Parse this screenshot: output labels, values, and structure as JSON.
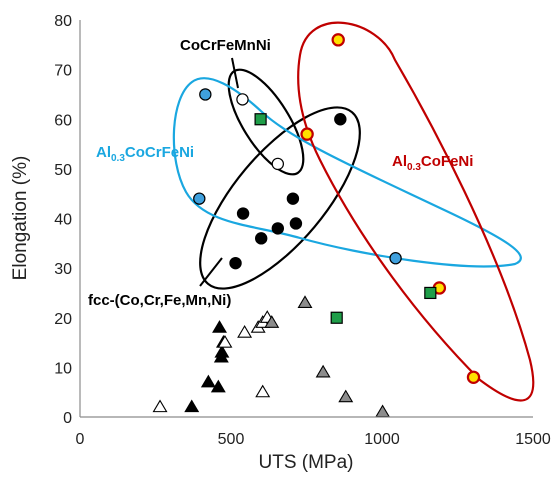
{
  "chart_data": {
    "type": "scatter",
    "title": "",
    "xlabel": "UTS (MPa)",
    "ylabel": "Elongation (%)",
    "xlim": [
      0,
      1500
    ],
    "ylim": [
      0,
      80
    ],
    "xticks": [
      0,
      500,
      1000,
      1500
    ],
    "yticks": [
      0,
      10,
      20,
      30,
      40,
      50,
      60,
      70,
      80
    ],
    "grid": false,
    "legend": "none",
    "annotations": [
      {
        "id": "cocrfemnni",
        "text": "CoCrFeMnNi",
        "color": "#000000"
      },
      {
        "id": "al03cocrfeni",
        "parts": [
          "Al",
          "0.3",
          "CoCrFeNi"
        ],
        "color": "#1aa7e0"
      },
      {
        "id": "al03cofeni",
        "parts": [
          "Al",
          "0.3",
          "CoFeNi"
        ],
        "color": "#c00000"
      },
      {
        "id": "fcc",
        "text": "fcc-(Co,Cr,Fe,Mn,Ni)",
        "color": "#000000"
      }
    ],
    "series": [
      {
        "marker": "circle",
        "fill": "#3fa0dd",
        "stroke": "#000000",
        "points": [
          [
            415,
            65
          ],
          [
            395,
            44
          ],
          [
            1045,
            32
          ]
        ]
      },
      {
        "marker": "circle",
        "fill": "#ffe100",
        "stroke": "#c00000",
        "points": [
          [
            855,
            76
          ],
          [
            752,
            57
          ],
          [
            1190,
            26
          ],
          [
            1303,
            8
          ]
        ]
      },
      {
        "marker": "circle",
        "fill": "#000000",
        "stroke": "#000000",
        "points": [
          [
            862,
            60
          ],
          [
            705,
            44
          ],
          [
            540,
            41
          ],
          [
            655,
            38
          ],
          [
            715,
            39
          ],
          [
            600,
            36
          ],
          [
            515,
            31
          ]
        ]
      },
      {
        "marker": "circle",
        "fill": "#ffffff",
        "stroke": "#000000",
        "points": [
          [
            538,
            64
          ],
          [
            655,
            51
          ]
        ]
      },
      {
        "marker": "square",
        "fill": "#1f9e49",
        "stroke": "#000000",
        "points": [
          [
            598,
            60
          ],
          [
            850,
            20
          ],
          [
            1160,
            25
          ]
        ]
      },
      {
        "marker": "triangle",
        "fill": "#000000",
        "stroke": "#000000",
        "points": [
          [
            462,
            18
          ],
          [
            475,
            15
          ],
          [
            470,
            13
          ],
          [
            468,
            12
          ],
          [
            425,
            7
          ],
          [
            458,
            6
          ],
          [
            370,
            2
          ]
        ]
      },
      {
        "marker": "triangle",
        "fill": "#ffffff",
        "stroke": "#000000",
        "points": [
          [
            265,
            2
          ],
          [
            545,
            17
          ],
          [
            590,
            18
          ],
          [
            605,
            19
          ],
          [
            620,
            20
          ],
          [
            480,
            15
          ],
          [
            605,
            5
          ]
        ]
      },
      {
        "marker": "triangle",
        "fill": "#8c8c8c",
        "stroke": "#000000",
        "points": [
          [
            635,
            19
          ],
          [
            745,
            23
          ],
          [
            805,
            9
          ],
          [
            880,
            4
          ],
          [
            1002,
            1
          ]
        ]
      }
    ]
  }
}
